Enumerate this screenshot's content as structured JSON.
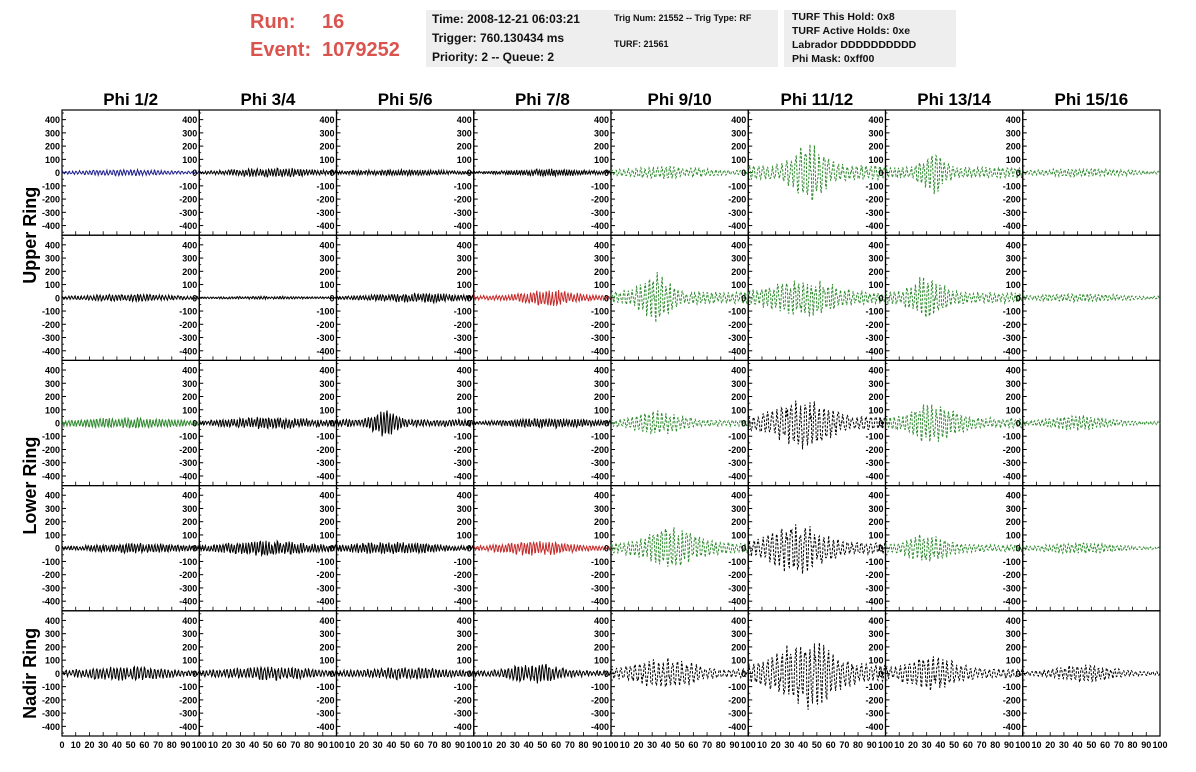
{
  "header": {
    "run_label": "Run:",
    "run_value": "16",
    "event_label": "Event:",
    "event_value": "1079252"
  },
  "info_box_1": {
    "time": "Time: 2008-12-21 06:03:21",
    "trigger": "Trigger: 760.130434 ms",
    "priority": "Priority: 2 -- Queue: 2"
  },
  "info_box_2": {
    "trig": "Trig Num: 21552 -- Trig Type: RF",
    "turf": "TURF: 21561"
  },
  "info_box_3": {
    "hold": "TURF This Hold: 0x8",
    "active": "TURF Active Holds: 0xe",
    "labrador": "Labrador DDDDDDDDDD",
    "mask": "Phi Mask: 0xff00"
  },
  "colors": {
    "run_text": "#d9534f",
    "black": "#000000",
    "blue": "#1f1f8f",
    "green": "#2f8a2f",
    "red": "#c62828",
    "box_bg": "#eeeeee"
  },
  "chart_data": {
    "type": "line",
    "columns": [
      "Phi 1/2",
      "Phi 3/4",
      "Phi 5/6",
      "Phi 7/8",
      "Phi 9/10",
      "Phi 11/12",
      "Phi 13/14",
      "Phi 15/16"
    ],
    "row_labels": [
      {
        "text": "Upper Ring",
        "rows": [
          0,
          1
        ]
      },
      {
        "text": "Lower Ring",
        "rows": [
          2,
          3
        ]
      },
      {
        "text": "Nadir Ring",
        "rows": [
          4
        ]
      }
    ],
    "ylim": [
      -450,
      450
    ],
    "y_ticks": [
      400,
      300,
      200,
      100,
      0,
      -100,
      -200,
      -300,
      -400
    ],
    "xlim": [
      0,
      100
    ],
    "x_ticks": [
      0,
      10,
      20,
      30,
      40,
      50,
      60,
      70,
      80,
      90,
      100
    ],
    "x_tick_labels_first": "0 10 20 30 40 50 60 70 80 90 100",
    "x_tick_labels_other": "10 20 30 40 50 60 70 80 90 100",
    "panels": [
      [
        {
          "color": "blue",
          "dash": false,
          "amp": 25,
          "center": 45,
          "width": 40,
          "freq": 1.1
        },
        {
          "color": "black",
          "dash": false,
          "amp": 40,
          "center": 55,
          "width": 35,
          "freq": 1.3
        },
        {
          "color": "black",
          "dash": false,
          "amp": 25,
          "center": 45,
          "width": 45,
          "freq": 1.4
        },
        {
          "color": "black",
          "dash": false,
          "amp": 30,
          "center": 55,
          "width": 35,
          "freq": 1.5
        },
        {
          "color": "green",
          "dash": true,
          "amp": 50,
          "center": 40,
          "width": 35,
          "freq": 0.9
        },
        {
          "color": "green",
          "dash": true,
          "amp": 230,
          "center": 45,
          "width": 14,
          "freq": 0.8
        },
        {
          "color": "green",
          "dash": true,
          "amp": 170,
          "center": 35,
          "width": 10,
          "freq": 0.9
        },
        {
          "color": "green",
          "dash": true,
          "amp": 35,
          "center": 45,
          "width": 40,
          "freq": 1.0
        }
      ],
      [
        {
          "color": "black",
          "dash": false,
          "amp": 30,
          "center": 50,
          "width": 40,
          "freq": 1.2
        },
        {
          "color": "black",
          "dash": false,
          "amp": 12,
          "center": 50,
          "width": 50,
          "freq": 1.4
        },
        {
          "color": "black",
          "dash": false,
          "amp": 40,
          "center": 60,
          "width": 40,
          "freq": 1.3
        },
        {
          "color": "red",
          "dash": false,
          "amp": 70,
          "center": 55,
          "width": 22,
          "freq": 1.2
        },
        {
          "color": "green",
          "dash": true,
          "amp": 200,
          "center": 32,
          "width": 12,
          "freq": 0.9
        },
        {
          "color": "green",
          "dash": true,
          "amp": 150,
          "center": 40,
          "width": 30,
          "freq": 0.9
        },
        {
          "color": "green",
          "dash": true,
          "amp": 180,
          "center": 30,
          "width": 14,
          "freq": 0.9
        },
        {
          "color": "green",
          "dash": true,
          "amp": 35,
          "center": 40,
          "width": 40,
          "freq": 1.0
        }
      ],
      [
        {
          "color": "green",
          "dash": false,
          "amp": 45,
          "center": 45,
          "width": 45,
          "freq": 1.2
        },
        {
          "color": "black",
          "dash": false,
          "amp": 50,
          "center": 55,
          "width": 40,
          "freq": 1.3
        },
        {
          "color": "black",
          "dash": false,
          "amp": 110,
          "center": 35,
          "width": 10,
          "freq": 1.2
        },
        {
          "color": "black",
          "dash": false,
          "amp": 40,
          "center": 55,
          "width": 40,
          "freq": 1.3
        },
        {
          "color": "green",
          "dash": true,
          "amp": 100,
          "center": 35,
          "width": 20,
          "freq": 0.9
        },
        {
          "color": "black",
          "dash": true,
          "amp": 210,
          "center": 40,
          "width": 22,
          "freq": 0.8
        },
        {
          "color": "green",
          "dash": true,
          "amp": 170,
          "center": 35,
          "width": 18,
          "freq": 0.9
        },
        {
          "color": "green",
          "dash": true,
          "amp": 60,
          "center": 40,
          "width": 25,
          "freq": 1.0
        }
      ],
      [
        {
          "color": "black",
          "dash": false,
          "amp": 40,
          "center": 55,
          "width": 40,
          "freq": 1.3
        },
        {
          "color": "black",
          "dash": false,
          "amp": 60,
          "center": 50,
          "width": 40,
          "freq": 1.3
        },
        {
          "color": "black",
          "dash": false,
          "amp": 50,
          "center": 40,
          "width": 40,
          "freq": 1.3
        },
        {
          "color": "red",
          "dash": false,
          "amp": 60,
          "center": 45,
          "width": 28,
          "freq": 1.2
        },
        {
          "color": "green",
          "dash": true,
          "amp": 180,
          "center": 45,
          "width": 20,
          "freq": 0.9
        },
        {
          "color": "black",
          "dash": true,
          "amp": 200,
          "center": 35,
          "width": 22,
          "freq": 0.8
        },
        {
          "color": "green",
          "dash": true,
          "amp": 120,
          "center": 30,
          "width": 16,
          "freq": 0.9
        },
        {
          "color": "green",
          "dash": true,
          "amp": 45,
          "center": 40,
          "width": 30,
          "freq": 1.0
        }
      ],
      [
        {
          "color": "black",
          "dash": false,
          "amp": 55,
          "center": 45,
          "width": 40,
          "freq": 1.1
        },
        {
          "color": "black",
          "dash": false,
          "amp": 55,
          "center": 50,
          "width": 40,
          "freq": 1.1
        },
        {
          "color": "black",
          "dash": false,
          "amp": 50,
          "center": 50,
          "width": 40,
          "freq": 1.1
        },
        {
          "color": "black",
          "dash": false,
          "amp": 85,
          "center": 45,
          "width": 20,
          "freq": 1.1
        },
        {
          "color": "black",
          "dash": true,
          "amp": 130,
          "center": 40,
          "width": 25,
          "freq": 0.8
        },
        {
          "color": "black",
          "dash": true,
          "amp": 290,
          "center": 42,
          "width": 22,
          "freq": 0.8
        },
        {
          "color": "black",
          "dash": true,
          "amp": 140,
          "center": 35,
          "width": 22,
          "freq": 0.8
        },
        {
          "color": "black",
          "dash": true,
          "amp": 70,
          "center": 45,
          "width": 25,
          "freq": 0.9
        }
      ]
    ]
  }
}
